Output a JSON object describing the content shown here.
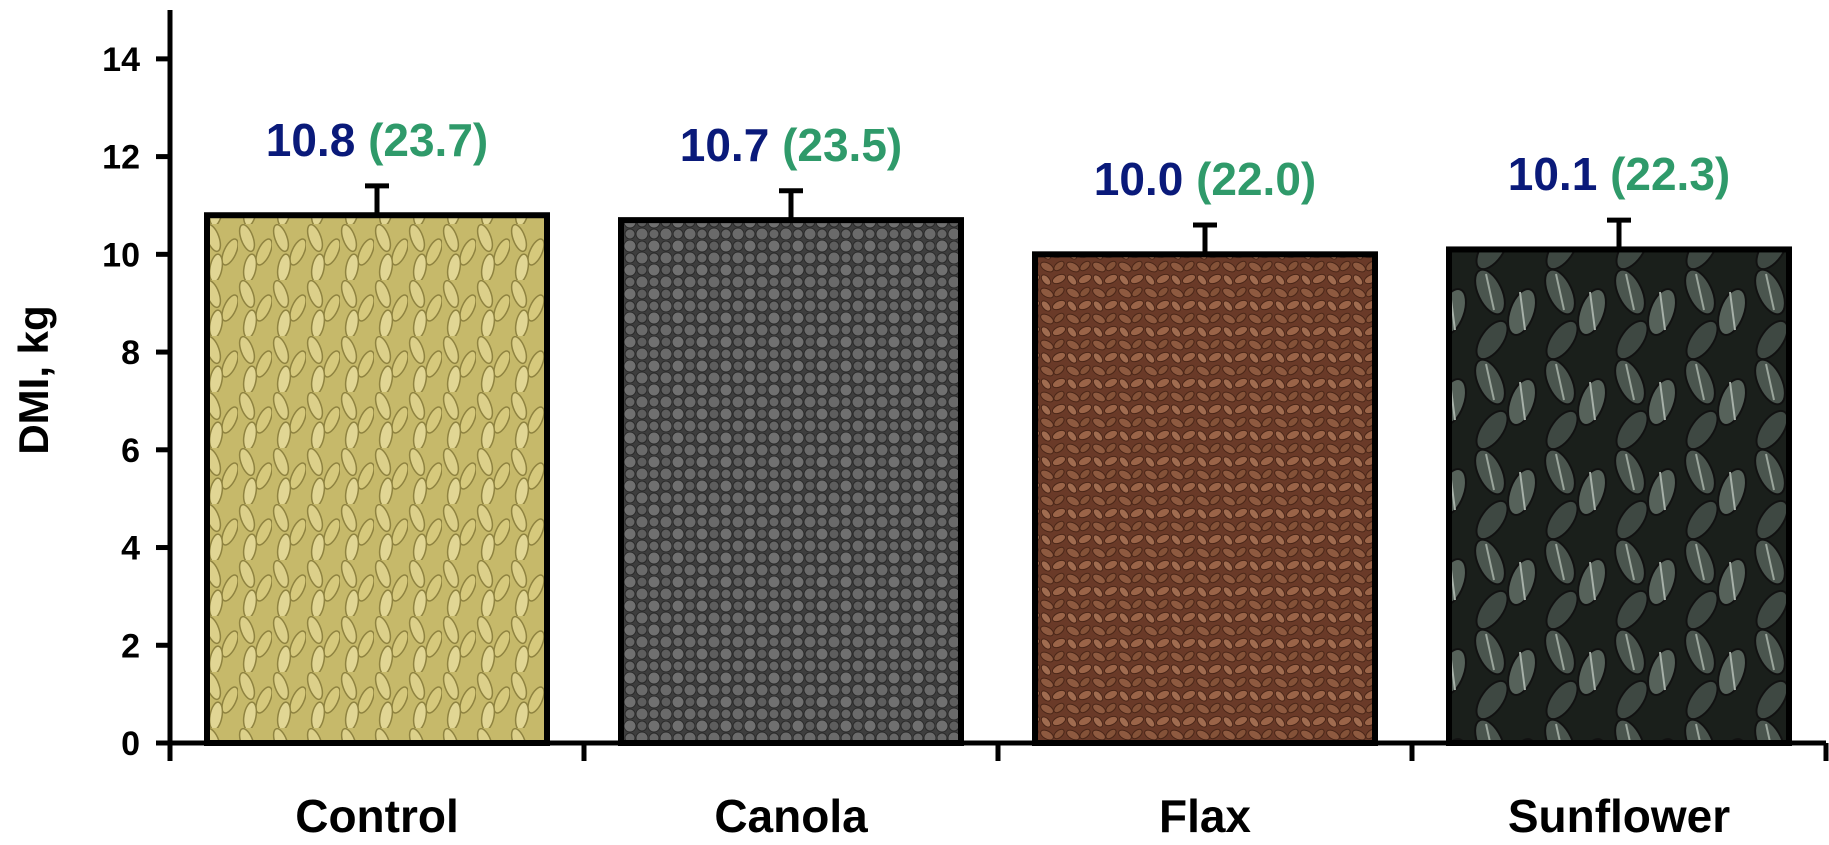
{
  "chart_data": {
    "type": "bar",
    "categories": [
      "Control",
      "Canola",
      "Flax",
      "Sunflower"
    ],
    "values": [
      10.8,
      10.7,
      10.0,
      10.1
    ],
    "error_upper": [
      11.4,
      11.3,
      10.6,
      10.7
    ],
    "value_labels": [
      "10.8",
      "10.7",
      "10.0",
      "10.1"
    ],
    "secondary_labels": [
      "(23.7)",
      "(23.5)",
      "(22.0)",
      "(22.3)"
    ],
    "bar_textures": [
      "barley-grain",
      "canola-seed",
      "flax-seed",
      "sunflower-seed"
    ],
    "ylabel": "DMI, kg",
    "xlabel": "",
    "ylim": [
      0,
      15
    ],
    "yticks": [
      0,
      2,
      4,
      6,
      8,
      10,
      12,
      14
    ],
    "grid": false,
    "legend": "none",
    "colors": {
      "value_label": "#0a1a7a",
      "secondary_label": "#2f9a6a",
      "axis": "#000000",
      "bar_fills": [
        "#bfb25e",
        "#5e5e5e",
        "#7a4a34",
        "#3a443e"
      ]
    }
  }
}
